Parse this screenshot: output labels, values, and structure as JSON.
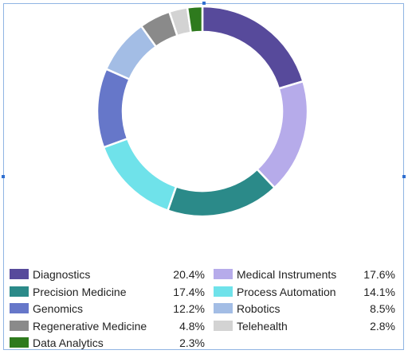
{
  "chart_data": {
    "type": "pie",
    "style": "donut",
    "title": "",
    "legend_position": "bottom",
    "slices": [
      {
        "label": "Diagnostics",
        "value": 20.4,
        "display": "20.4%",
        "color": "#574a9b"
      },
      {
        "label": "Medical Instruments",
        "value": 17.6,
        "display": "17.6%",
        "color": "#b6abea"
      },
      {
        "label": "Precision Medicine",
        "value": 17.4,
        "display": "17.4%",
        "color": "#2b8a89"
      },
      {
        "label": "Process Automation",
        "value": 14.1,
        "display": "14.1%",
        "color": "#6fe2ea"
      },
      {
        "label": "Genomics",
        "value": 12.2,
        "display": "12.2%",
        "color": "#6677c9"
      },
      {
        "label": "Robotics",
        "value": 8.5,
        "display": "8.5%",
        "color": "#a3bde5"
      },
      {
        "label": "Regenerative Medicine",
        "value": 4.8,
        "display": "4.8%",
        "color": "#8a8a8a"
      },
      {
        "label": "Telehealth",
        "value": 2.8,
        "display": "2.8%",
        "color": "#d3d3d3"
      },
      {
        "label": "Data Analytics",
        "value": 2.3,
        "display": "2.3%",
        "color": "#2e7a1d"
      }
    ]
  }
}
